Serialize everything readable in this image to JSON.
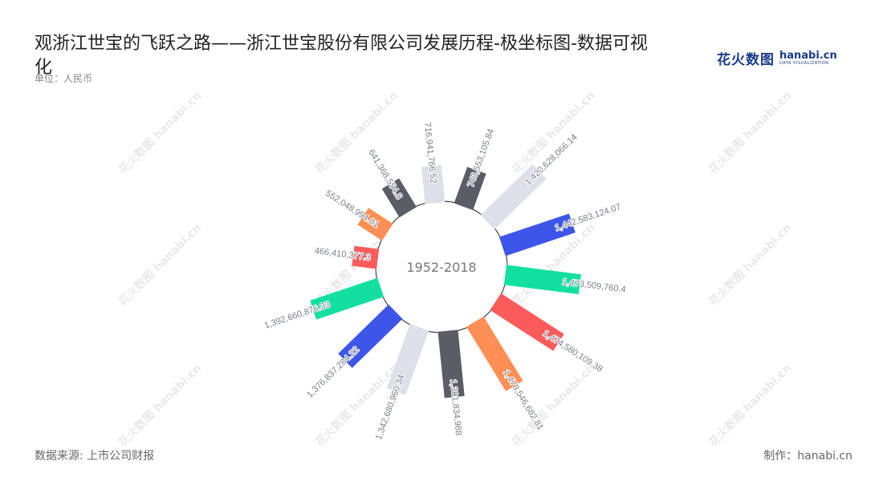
{
  "title": "观浙江世宝的飞跃之路——浙江世宝股份有限公司发展历程-极坐标图-数据可视化",
  "unit": "单位：人民币",
  "source": "数据来源: 上市公司财报",
  "credit": "制作：hanabi.cn",
  "logo": {
    "cn": "花火数图",
    "en": "hanabi.cn",
    "en_sub": "DATA VISUALIZATION"
  },
  "watermark": {
    "cn": "花火数图",
    "en": "hanabi.cn"
  },
  "chart_data": {
    "type": "bar",
    "layout": "polar-radial",
    "center_label": "1952-2018",
    "colors": [
      "#5a5c66",
      "#dde0e8",
      "#3d55e8",
      "#13e0a0",
      "#fd5b5b",
      "#ff8f55"
    ],
    "values": [
      743553105.84,
      1420628066.14,
      1442583124.07,
      1473509760.4,
      1474580109.38,
      1478546682.81,
      1301834988,
      1342680960.34,
      1376837284.22,
      1392660876.33,
      466410377.3,
      552048994.01,
      641368554.8,
      716941766.52
    ],
    "labels": [
      "743,553,105.84",
      "1,420,628,066.14",
      "1,442,583,124.07",
      "1,473,509,760.4",
      "1,474,580,109.38",
      "1,478,546,682.81",
      "1,301,834,988",
      "1,342,680,960.34",
      "1,376,837,284.22",
      "1,392,660,876.33",
      "466,410,377.3",
      "552,048,994.01",
      "641,368,554.8",
      "716,941,766.52"
    ]
  }
}
